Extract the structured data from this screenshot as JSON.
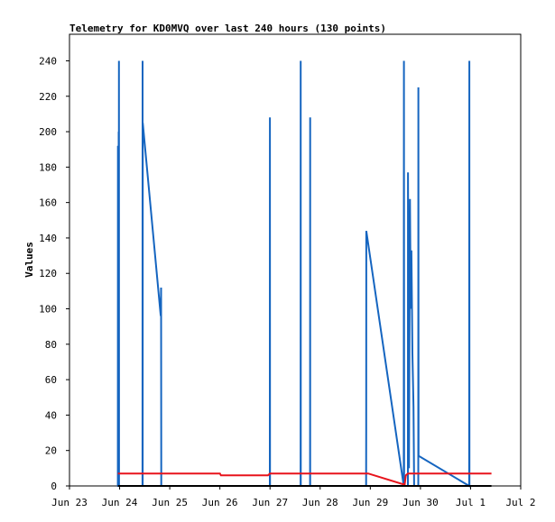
{
  "chart_data": {
    "type": "line",
    "title": "Telemetry for KD0MVQ over last 240 hours (130 points)",
    "ylabel": "Values",
    "xlabel": "",
    "xlim": [
      "2023-06-23",
      "2023-07-02"
    ],
    "ylim": [
      0,
      255
    ],
    "x_ticks": [
      "Jun 23",
      "Jun 24",
      "Jun 25",
      "Jun 26",
      "Jun 27",
      "Jun 28",
      "Jun 29",
      "Jun 30",
      "Jul 1",
      "Jul 2"
    ],
    "y_ticks": [
      0,
      20,
      40,
      60,
      80,
      100,
      120,
      140,
      160,
      180,
      200,
      220,
      240
    ],
    "grid": false,
    "colors": {
      "blue": "#1565c0",
      "red": "#e8141c",
      "black": "#000000"
    },
    "series": [
      {
        "color": "#1565c0",
        "points": [
          [
            "2023-06-23T23:10",
            0
          ],
          [
            "2023-06-23T23:12",
            192
          ],
          [
            "2023-06-23T23:14",
            0
          ],
          [
            "2023-06-23T23:30",
            0
          ],
          [
            "2023-06-23T23:33",
            200
          ],
          [
            "2023-06-23T23:36",
            40
          ],
          [
            "2023-06-23T23:40",
            240
          ],
          [
            "2023-06-23T23:43",
            0
          ],
          [
            "2023-06-24T10:58",
            0
          ],
          [
            "2023-06-24T11:00",
            240
          ],
          [
            "2023-06-24T11:02",
            0
          ],
          [
            "2023-06-24T11:05",
            205
          ],
          [
            "2023-06-24T19:40",
            96
          ],
          [
            "2023-06-24T19:50",
            112
          ],
          [
            "2023-06-24T19:55",
            0
          ],
          [
            "2023-06-26T23:55",
            0
          ],
          [
            "2023-06-26T23:57",
            208
          ],
          [
            "2023-06-27T00:00",
            0
          ],
          [
            "2023-06-27T14:38",
            0
          ],
          [
            "2023-06-27T14:40",
            240
          ],
          [
            "2023-06-27T14:42",
            0
          ],
          [
            "2023-06-27T19:10",
            0
          ],
          [
            "2023-06-27T19:12",
            208
          ],
          [
            "2023-06-27T19:14",
            0
          ],
          [
            "2023-06-28T22:00",
            0
          ],
          [
            "2023-06-28T22:02",
            32
          ],
          [
            "2023-06-28T22:06",
            144
          ],
          [
            "2023-06-29T16:00",
            0
          ],
          [
            "2023-06-29T16:05",
            240
          ],
          [
            "2023-06-29T16:10",
            0
          ],
          [
            "2023-06-29T18:00",
            0
          ],
          [
            "2023-06-29T18:02",
            177
          ],
          [
            "2023-06-29T18:30",
            10
          ],
          [
            "2023-06-29T19:00",
            162
          ],
          [
            "2023-06-29T19:20",
            100
          ],
          [
            "2023-06-29T19:40",
            133
          ],
          [
            "2023-06-29T20:10",
            75
          ],
          [
            "2023-06-29T20:40",
            45
          ],
          [
            "2023-06-29T21:00",
            0
          ],
          [
            "2023-06-29T22:58",
            0
          ],
          [
            "2023-06-29T23:00",
            225
          ],
          [
            "2023-06-29T23:05",
            17
          ],
          [
            "2023-06-30T23:20",
            0
          ],
          [
            "2023-06-30T23:22",
            120
          ],
          [
            "2023-06-30T23:25",
            240
          ],
          [
            "2023-06-30T23:28",
            0
          ]
        ]
      },
      {
        "color": "#e8141c",
        "points": [
          [
            "2023-06-23T23:10",
            7
          ],
          [
            "2023-06-26T00:00",
            7
          ],
          [
            "2023-06-26T00:30",
            6
          ],
          [
            "2023-06-26T23:00",
            6
          ],
          [
            "2023-06-27T00:00",
            7
          ],
          [
            "2023-06-28T23:00",
            7
          ],
          [
            "2023-06-29T15:30",
            1
          ],
          [
            "2023-06-29T16:30",
            1
          ],
          [
            "2023-06-29T17:00",
            6
          ],
          [
            "2023-06-29T18:00",
            7
          ],
          [
            "2023-07-01T10:00",
            7
          ]
        ]
      },
      {
        "color": "#000000",
        "points": [
          [
            "2023-06-23T23:10",
            0
          ],
          [
            "2023-07-01T10:00",
            0
          ]
        ]
      }
    ]
  }
}
